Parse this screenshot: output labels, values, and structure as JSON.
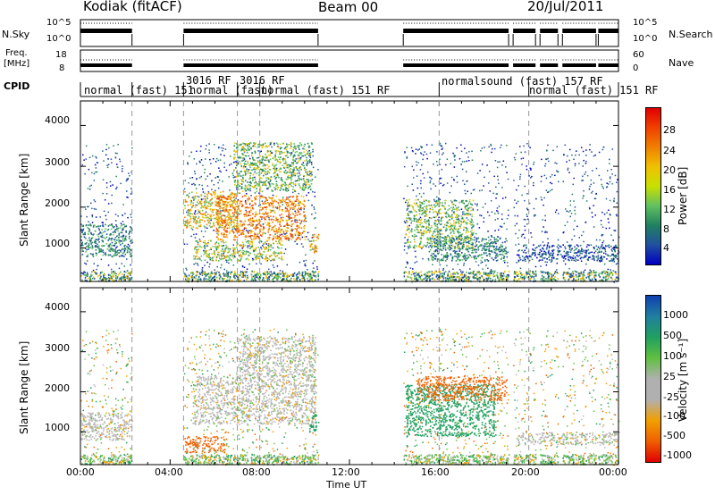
{
  "header": {
    "radar_label": "Kodiak (fitACF)",
    "beam_label": "Beam 00",
    "date_label": "20/Jul/2011"
  },
  "nsky_panel": {
    "left_label": "N.Sky",
    "right_label": "N.Search",
    "left_ticks": [
      "10^5",
      "10^0"
    ],
    "right_ticks": [
      "10^5",
      "10^0"
    ]
  },
  "freq_panel": {
    "left_label_line1": "Freq.",
    "left_label_line2": "[MHz]",
    "right_label": "Nave",
    "left_ticks": [
      "18",
      "8"
    ],
    "right_ticks": [
      "60",
      "0"
    ]
  },
  "cpid_panel": {
    "label": "CPID",
    "segments": [
      "normal (fast)  151",
      "3016  RF",
      "3016  RF",
      "normal (fast)",
      "normal (fast)   151  RF",
      "normalsound (fast)   157  RF",
      "normal (fast)   151  RF"
    ]
  },
  "power_panel": {
    "ylabel": "Slant Range [km]",
    "yticks": [
      "4000",
      "3000",
      "2000",
      "1000"
    ],
    "colorbar_label": "Power [dB]",
    "colorbar_ticks": [
      "28",
      "24",
      "20",
      "16",
      "12",
      "8",
      "4"
    ],
    "colorbar_colors": [
      "#e00000",
      "#f04000",
      "#f08000",
      "#f0c000",
      "#c8e000",
      "#60c060",
      "#208060",
      "#2050a0",
      "#0000c0"
    ]
  },
  "velocity_panel": {
    "ylabel": "Slant Range [km]",
    "yticks": [
      "4000",
      "3000",
      "2000",
      "1000"
    ],
    "colorbar_label": "Velocity  [m s⁻¹]",
    "colorbar_ticks": [
      "1000",
      "500",
      "100",
      "25",
      "-25",
      "-100",
      "-500",
      "-1000"
    ],
    "colorbar_colors": [
      "#1040b0",
      "#2080a0",
      "#20a060",
      "#60c040",
      "#b0b0b0",
      "#b0b0b0",
      "#f0a000",
      "#f06000",
      "#e00000"
    ]
  },
  "x_axis": {
    "label": "Time UT",
    "ticks": [
      "00:00",
      "04:00",
      "08:00",
      "12:00",
      "16:00",
      "20:00",
      "00:00"
    ]
  },
  "chart_data": {
    "type": "heatmap",
    "x_unit": "hours UT",
    "x_range": [
      0,
      24
    ],
    "y_range_km": [
      180,
      4600
    ],
    "data_intervals_hours": [
      [
        0.0,
        2.3
      ],
      [
        4.6,
        10.6
      ],
      [
        14.4,
        19.1
      ],
      [
        19.3,
        20.3
      ],
      [
        20.5,
        21.3
      ],
      [
        21.5,
        23.0
      ],
      [
        23.1,
        24.0
      ]
    ],
    "power_blobs": [
      {
        "t": [
          0.0,
          2.3
        ],
        "range_km": [
          800,
          1600
        ],
        "level_db": 10
      },
      {
        "t": [
          4.6,
          7.0
        ],
        "range_km": [
          1500,
          2400
        ],
        "level_db": 18
      },
      {
        "t": [
          6.0,
          10.0
        ],
        "range_km": [
          1200,
          2300
        ],
        "level_db": 22
      },
      {
        "t": [
          6.8,
          10.3
        ],
        "range_km": [
          2400,
          3600
        ],
        "level_db": 14
      },
      {
        "t": [
          5.0,
          9.0
        ],
        "range_km": [
          700,
          1200
        ],
        "level_db": 16
      },
      {
        "t": [
          10.2,
          10.6
        ],
        "range_km": [
          900,
          1400
        ],
        "level_db": 20
      },
      {
        "t": [
          14.5,
          17.5
        ],
        "range_km": [
          1000,
          2200
        ],
        "level_db": 14
      },
      {
        "t": [
          15.5,
          19.0
        ],
        "range_km": [
          700,
          1300
        ],
        "level_db": 10
      },
      {
        "t": [
          19.5,
          24.0
        ],
        "range_km": [
          700,
          1100
        ],
        "level_db": 6
      }
    ],
    "velocity_blobs": [
      {
        "t": [
          0.0,
          2.3
        ],
        "range_km": [
          800,
          1500
        ],
        "vel_ms": 0
      },
      {
        "t": [
          4.6,
          6.5
        ],
        "range_km": [
          500,
          900
        ],
        "vel_ms": -200
      },
      {
        "t": [
          5.0,
          10.5
        ],
        "range_km": [
          1200,
          2400
        ],
        "vel_ms": 0
      },
      {
        "t": [
          7.0,
          10.5
        ],
        "range_km": [
          2400,
          3400
        ],
        "vel_ms": 0
      },
      {
        "t": [
          10.2,
          10.6
        ],
        "range_km": [
          1000,
          1500
        ],
        "vel_ms": 150
      },
      {
        "t": [
          14.5,
          18.5
        ],
        "range_km": [
          900,
          2200
        ],
        "vel_ms": 150
      },
      {
        "t": [
          15.0,
          19.0
        ],
        "range_km": [
          1800,
          2400
        ],
        "vel_ms": -200
      },
      {
        "t": [
          19.5,
          24.0
        ],
        "range_km": [
          700,
          1000
        ],
        "vel_ms": 0
      }
    ]
  }
}
